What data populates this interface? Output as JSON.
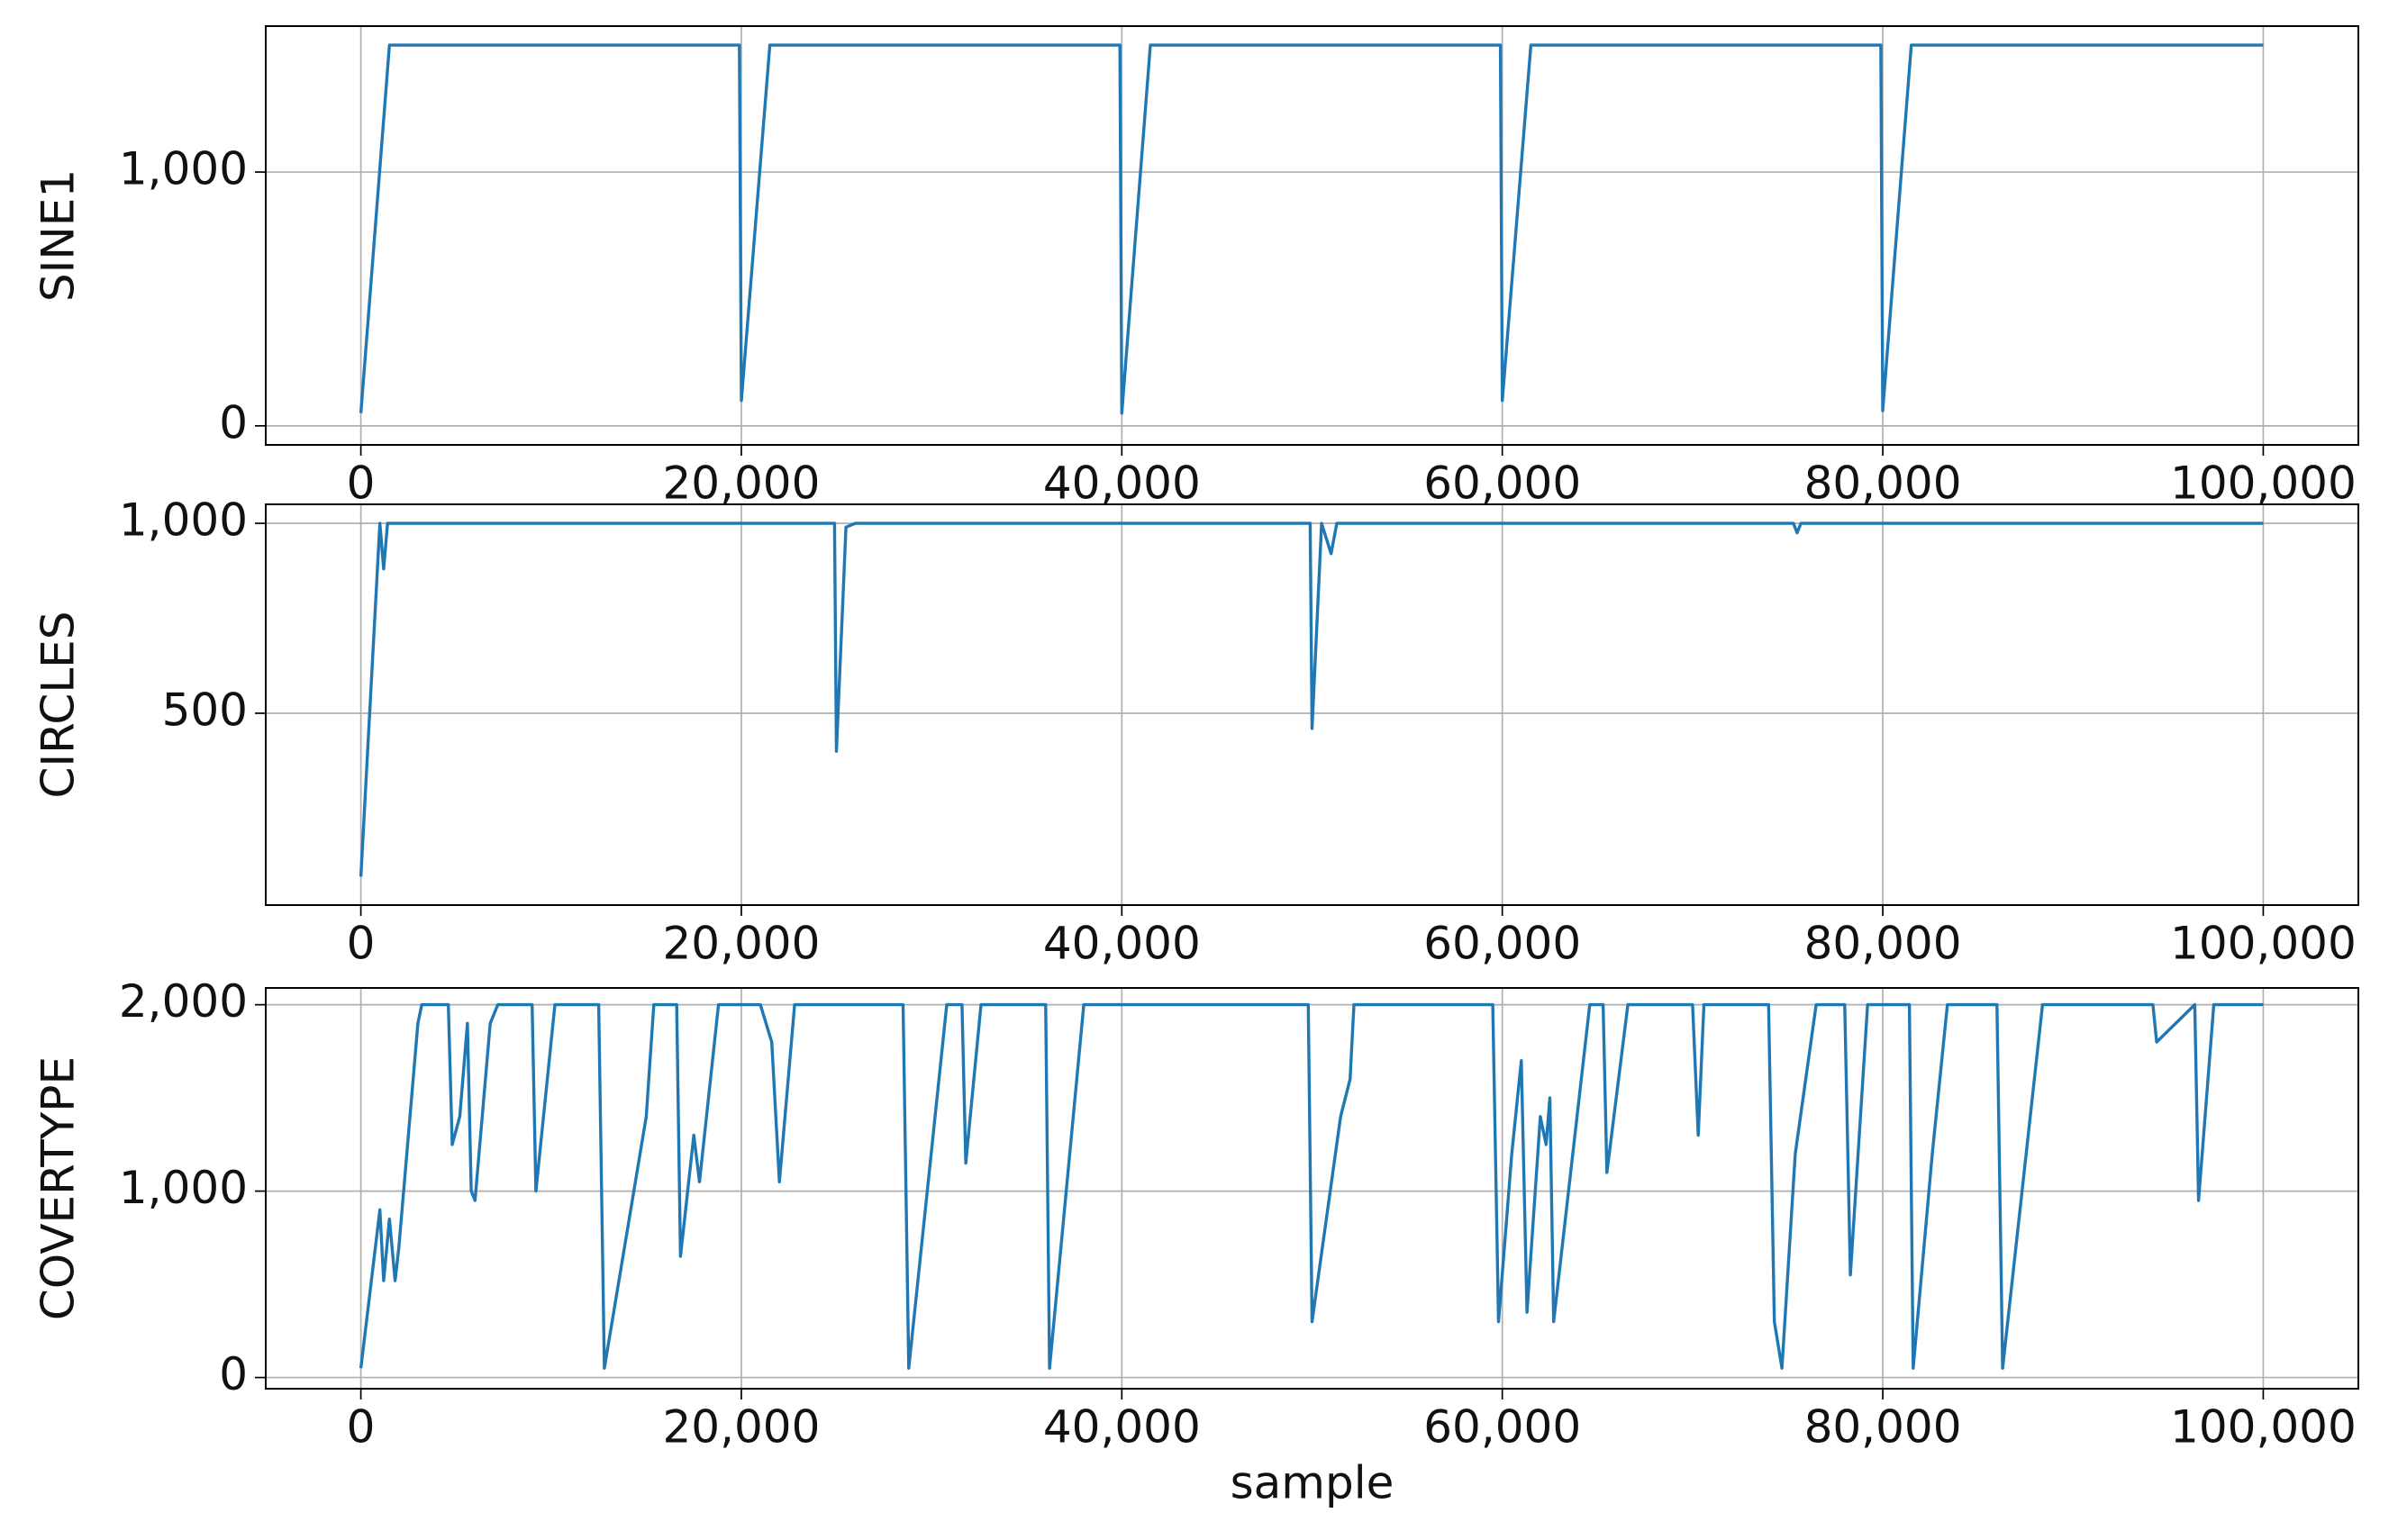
{
  "chart_data": [
    {
      "type": "line",
      "ylabel": "SINE1",
      "color": "#1f77b4",
      "grid": true,
      "xlim": [
        -5000,
        105000
      ],
      "ylim": [
        -75,
        1575
      ],
      "xticks": [
        0,
        {
          "value": 20000,
          "label": "20,000"
        },
        {
          "value": 40000,
          "label": "40,000"
        },
        {
          "value": 60000,
          "label": "60,000"
        },
        {
          "value": 80000,
          "label": "80,000"
        },
        {
          "value": 100000,
          "label": "100,000"
        }
      ],
      "yticks": [
        0,
        {
          "value": 1000,
          "label": "1,000"
        }
      ],
      "x": [
        0,
        1500,
        19900,
        20000,
        21500,
        39900,
        40000,
        41500,
        59900,
        60000,
        61500,
        79900,
        80000,
        81500,
        100000
      ],
      "values": [
        50,
        1500,
        1500,
        100,
        1500,
        1500,
        50,
        1500,
        1500,
        100,
        1500,
        1500,
        60,
        1500,
        1500
      ]
    },
    {
      "type": "line",
      "ylabel": "CIRCLES",
      "color": "#1f77b4",
      "grid": true,
      "xlim": [
        -5000,
        105000
      ],
      "ylim": [
        -5,
        1050
      ],
      "xticks": [
        0,
        {
          "value": 20000,
          "label": "20,000"
        },
        {
          "value": 40000,
          "label": "40,000"
        },
        {
          "value": 60000,
          "label": "60,000"
        },
        {
          "value": 80000,
          "label": "80,000"
        },
        {
          "value": 100000,
          "label": "100,000"
        }
      ],
      "yticks": [
        500,
        {
          "value": 1000,
          "label": "1,000"
        }
      ],
      "x": [
        0,
        1000,
        1200,
        1400,
        24900,
        25000,
        25500,
        26000,
        49900,
        50000,
        50500,
        51000,
        51300,
        75300,
        75500,
        75700,
        100000
      ],
      "values": [
        70,
        1000,
        880,
        1000,
        1000,
        400,
        990,
        1000,
        1000,
        460,
        1000,
        920,
        1000,
        1000,
        975,
        1000,
        1000
      ]
    },
    {
      "type": "line",
      "ylabel": "COVERTYPE",
      "xlabel": "sample",
      "color": "#1f77b4",
      "grid": true,
      "xlim": [
        -5000,
        105000
      ],
      "ylim": [
        -60,
        2090
      ],
      "xticks": [
        0,
        {
          "value": 20000,
          "label": "20,000"
        },
        {
          "value": 40000,
          "label": "40,000"
        },
        {
          "value": 60000,
          "label": "60,000"
        },
        {
          "value": 80000,
          "label": "80,000"
        },
        {
          "value": 100000,
          "label": "100,000"
        }
      ],
      "yticks": [
        0,
        {
          "value": 1000,
          "label": "1,000"
        },
        {
          "value": 2000,
          "label": "2,000"
        }
      ],
      "x": [
        0,
        1000,
        1200,
        1500,
        1800,
        2000,
        3000,
        3200,
        4600,
        4800,
        5200,
        5600,
        5800,
        6000,
        6800,
        7200,
        9000,
        9200,
        10200,
        12500,
        12800,
        15000,
        15400,
        16600,
        16800,
        17500,
        17800,
        18800,
        21000,
        21600,
        22000,
        22800,
        28500,
        28800,
        30800,
        31600,
        31800,
        32600,
        36000,
        36200,
        38000,
        49800,
        50000,
        51500,
        52000,
        52200,
        59500,
        59800,
        60500,
        61000,
        61300,
        62000,
        62300,
        62500,
        62700,
        64600,
        65300,
        65500,
        66600,
        70000,
        70300,
        70600,
        74000,
        74300,
        74700,
        75400,
        76500,
        78000,
        78300,
        79200,
        81400,
        81600,
        82600,
        83400,
        86000,
        86300,
        88400,
        94200,
        94400,
        96400,
        96600,
        97400,
        100000
      ],
      "values": [
        50,
        900,
        520,
        850,
        520,
        700,
        1900,
        2000,
        2000,
        1250,
        1400,
        1900,
        1000,
        950,
        1900,
        2000,
        2000,
        1000,
        2000,
        2000,
        50,
        1400,
        2000,
        2000,
        650,
        1300,
        1050,
        2000,
        2000,
        1800,
        1050,
        2000,
        2000,
        50,
        2000,
        2000,
        1150,
        2000,
        2000,
        50,
        2000,
        2000,
        300,
        1400,
        1600,
        2000,
        2000,
        300,
        1200,
        1700,
        350,
        1400,
        1250,
        1500,
        300,
        2000,
        2000,
        1100,
        2000,
        2000,
        1300,
        2000,
        2000,
        300,
        50,
        1200,
        2000,
        2000,
        550,
        2000,
        2000,
        50,
        1200,
        2000,
        2000,
        50,
        2000,
        2000,
        1800,
        2000,
        950,
        2000,
        2000
      ]
    }
  ]
}
